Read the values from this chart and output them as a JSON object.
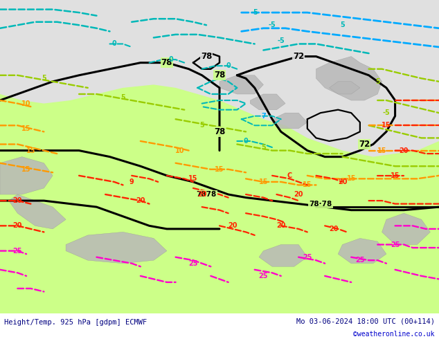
{
  "title_left": "Height/Temp. 925 hPa [gdpm] ECMWF",
  "title_right": "Mo 03-06-2024 18:00 UTC (00+114)",
  "copyright": "©weatheronline.co.uk",
  "title_color": "#000080",
  "copyright_color": "#0000cc",
  "bg_color": "#e0e0e0",
  "land_green_color": "#ccff88",
  "figsize": [
    6.34,
    4.9
  ],
  "dpi": 100,
  "contour_colors": {
    "cyan_dashed": "#00b8b8",
    "cyan_dashed2": "#00aaff",
    "green_dashed": "#99cc00",
    "orange_dashed": "#ff9900",
    "red_dashed": "#ff2200",
    "magenta_dashed": "#ff00cc"
  }
}
